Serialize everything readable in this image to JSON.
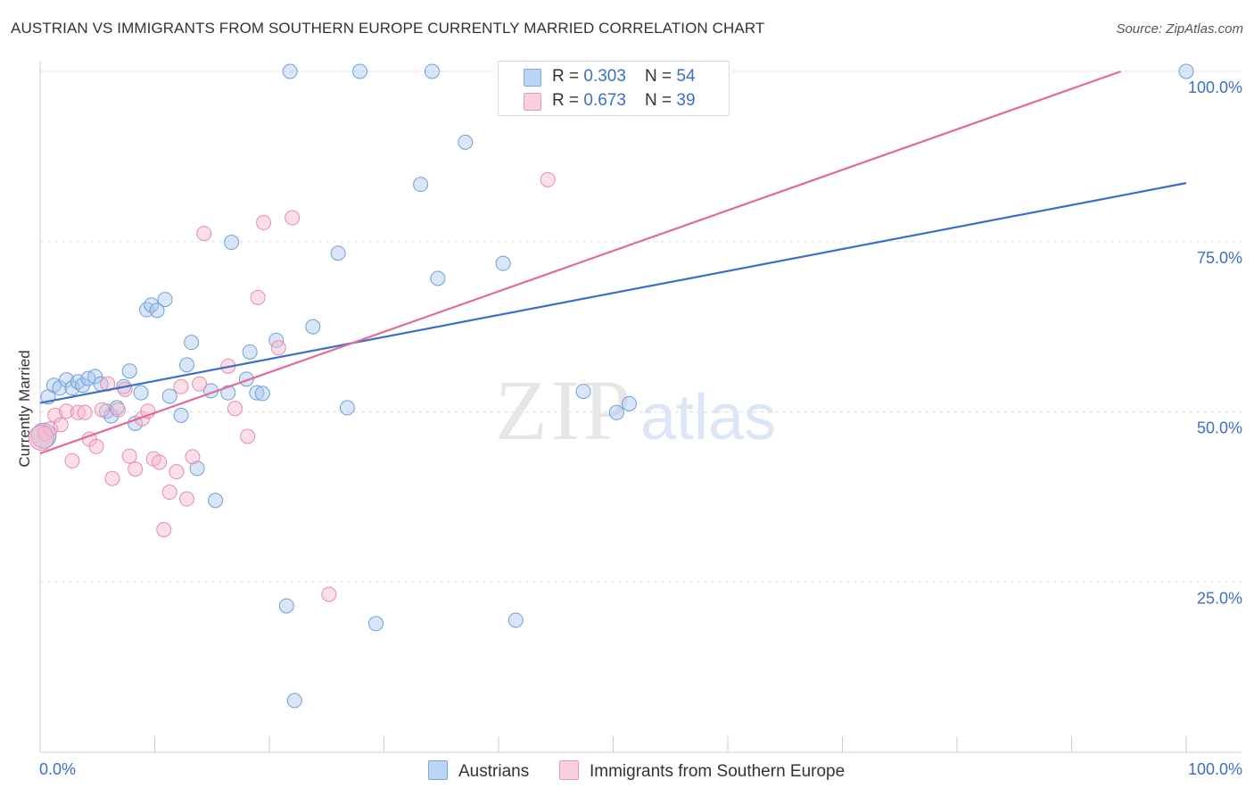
{
  "title": "AUSTRIAN VS IMMIGRANTS FROM SOUTHERN EUROPE CURRENTLY MARRIED CORRELATION CHART",
  "source": "Source: ZipAtlas.com",
  "watermark": {
    "zip": "ZIP",
    "atlas": "atlas"
  },
  "colors": {
    "blue": "#3b6fc9",
    "blue_fill": "#a9c8f0",
    "pink": "#e46a95",
    "pink_fill": "#f6b8cb"
  },
  "legend": {
    "austrians": {
      "r_label": "R = ",
      "r_value": "0.303",
      "n_label": "N = ",
      "n_value": "54"
    },
    "immigrants": {
      "r_label": "R = ",
      "r_value": "0.673",
      "n_label": "N = ",
      "n_value": "39"
    }
  },
  "bottom_legend": {
    "austrians": "Austrians",
    "immigrants": "Immigrants from Southern Europe"
  },
  "chart_data": {
    "type": "scatter",
    "title": "AUSTRIAN VS IMMIGRANTS FROM SOUTHERN EUROPE CURRENTLY MARRIED CORRELATION CHART",
    "xlabel": "",
    "ylabel": "Currently Married",
    "xlim": [
      0,
      100
    ],
    "ylim": [
      0,
      100
    ],
    "x_tick_labels": [
      "0.0%",
      "100.0%"
    ],
    "y_ticks": [
      25,
      50,
      75,
      100
    ],
    "y_tick_labels": [
      "25.0%",
      "50.0%",
      "75.0%",
      "100.0%"
    ],
    "series": [
      {
        "name": "Austrians",
        "color": "#3b6fc9",
        "r": 0.303,
        "n": 54,
        "trend": {
          "x0": 0,
          "y0": 51.3,
          "x1": 100,
          "y1": 83.6
        },
        "points": [
          [
            0.7,
            52.2
          ],
          [
            1.2,
            53.9
          ],
          [
            1.7,
            53.5
          ],
          [
            2.3,
            54.7
          ],
          [
            2.8,
            53.5
          ],
          [
            3.3,
            54.4
          ],
          [
            3.7,
            53.9
          ],
          [
            4.2,
            54.9
          ],
          [
            4.8,
            55.2
          ],
          [
            5.3,
            54.1
          ],
          [
            5.8,
            50.1
          ],
          [
            6.2,
            49.4
          ],
          [
            6.7,
            50.6
          ],
          [
            7.3,
            53.7
          ],
          [
            7.8,
            56.0
          ],
          [
            8.3,
            48.3
          ],
          [
            8.8,
            52.8
          ],
          [
            9.3,
            65.0
          ],
          [
            9.7,
            65.7
          ],
          [
            10.2,
            64.9
          ],
          [
            10.9,
            66.5
          ],
          [
            11.3,
            52.3
          ],
          [
            12.3,
            49.5
          ],
          [
            12.8,
            56.9
          ],
          [
            13.2,
            60.2
          ],
          [
            13.7,
            41.7
          ],
          [
            14.9,
            53.1
          ],
          [
            15.3,
            37.0
          ],
          [
            16.4,
            52.8
          ],
          [
            16.7,
            74.9
          ],
          [
            18.0,
            54.8
          ],
          [
            18.3,
            58.8
          ],
          [
            18.9,
            52.8
          ],
          [
            19.4,
            52.7
          ],
          [
            20.6,
            60.5
          ],
          [
            21.5,
            21.5
          ],
          [
            21.8,
            100.0
          ],
          [
            22.2,
            7.6
          ],
          [
            23.8,
            62.5
          ],
          [
            26.0,
            73.3
          ],
          [
            26.8,
            50.6
          ],
          [
            27.9,
            100.0
          ],
          [
            29.3,
            18.9
          ],
          [
            33.2,
            83.4
          ],
          [
            34.2,
            100.0
          ],
          [
            34.7,
            69.6
          ],
          [
            37.1,
            89.6
          ],
          [
            40.4,
            71.8
          ],
          [
            41.5,
            19.4
          ],
          [
            47.4,
            53.0
          ],
          [
            50.3,
            49.9
          ],
          [
            51.4,
            51.2
          ],
          [
            100.0,
            100.0
          ],
          [
            0.3,
            46.5
          ]
        ]
      },
      {
        "name": "Immigrants from Southern Europe",
        "color": "#e46a95",
        "r": 0.673,
        "n": 39,
        "trend": {
          "x0": 0,
          "y0": 43.9,
          "x1": 94.3,
          "y1": 100.0
        },
        "points": [
          [
            0.4,
            46.8
          ],
          [
            0.9,
            47.5
          ],
          [
            1.3,
            49.5
          ],
          [
            1.8,
            48.1
          ],
          [
            2.3,
            50.1
          ],
          [
            2.8,
            42.8
          ],
          [
            3.3,
            49.9
          ],
          [
            3.9,
            49.9
          ],
          [
            4.3,
            46.0
          ],
          [
            4.9,
            44.9
          ],
          [
            5.4,
            50.3
          ],
          [
            5.9,
            54.1
          ],
          [
            6.3,
            40.2
          ],
          [
            6.8,
            50.3
          ],
          [
            7.4,
            53.3
          ],
          [
            7.8,
            43.5
          ],
          [
            8.3,
            41.6
          ],
          [
            8.9,
            49.0
          ],
          [
            9.4,
            50.1
          ],
          [
            9.9,
            43.1
          ],
          [
            10.4,
            42.6
          ],
          [
            10.8,
            32.7
          ],
          [
            11.3,
            38.2
          ],
          [
            11.9,
            41.2
          ],
          [
            12.3,
            53.7
          ],
          [
            12.8,
            37.2
          ],
          [
            13.3,
            43.4
          ],
          [
            13.9,
            54.1
          ],
          [
            14.3,
            76.2
          ],
          [
            16.4,
            56.7
          ],
          [
            17.0,
            50.5
          ],
          [
            18.1,
            46.4
          ],
          [
            19.0,
            66.8
          ],
          [
            19.5,
            77.8
          ],
          [
            20.8,
            59.4
          ],
          [
            22.0,
            78.5
          ],
          [
            25.2,
            23.2
          ],
          [
            44.3,
            84.1
          ],
          [
            0.1,
            46.2
          ]
        ]
      }
    ]
  }
}
